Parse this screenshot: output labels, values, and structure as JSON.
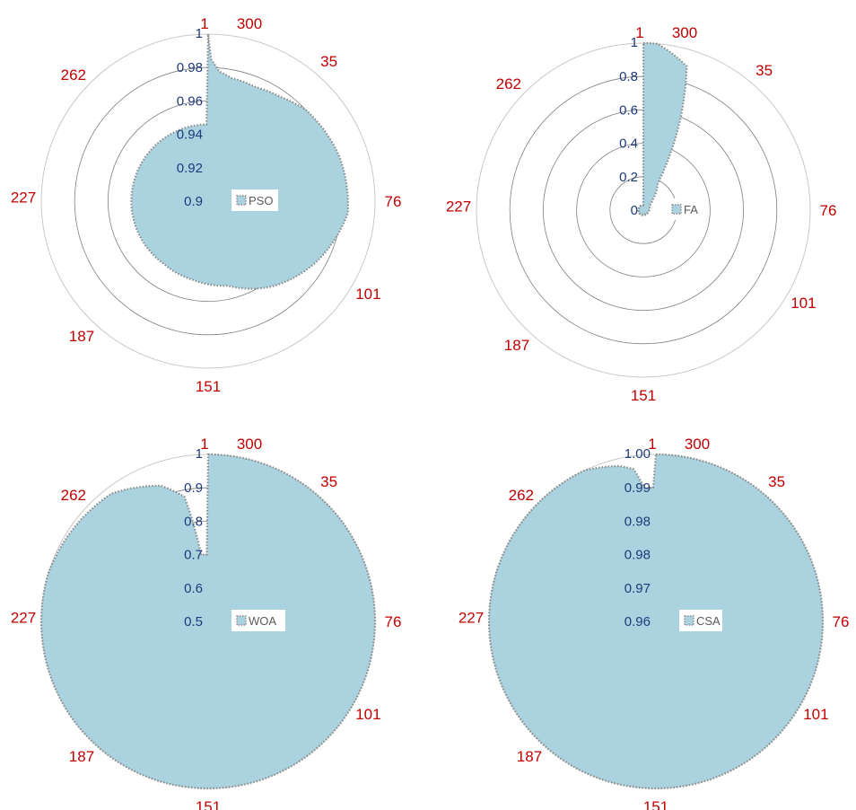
{
  "figure": {
    "accent_color": "#aad3df",
    "outline_color": "#8c8c8c",
    "category_label_color": "#c00000",
    "ring_label_color": "#1f3a7a"
  },
  "chart_data": [
    {
      "type": "radar",
      "legend": "PSO",
      "legend_position": "center-right",
      "category_labels": [
        "1",
        "35",
        "76",
        "101",
        "151",
        "187",
        "227",
        "262",
        "300"
      ],
      "ring_labels": [
        "1",
        "0.98",
        "0.96",
        "0.94",
        "0.92",
        "0.9"
      ],
      "rlim": [
        0.9,
        1.0
      ],
      "grid": true,
      "n_points": 300,
      "breakpoints": {
        "iterations": [
          1,
          2,
          5,
          10,
          20,
          30,
          40,
          60,
          80,
          100,
          120,
          140,
          160,
          180,
          200,
          220,
          240,
          260,
          280,
          300
        ],
        "values": [
          1.0,
          0.985,
          0.978,
          0.975,
          0.974,
          0.976,
          0.98,
          0.983,
          0.984,
          0.9745,
          0.964,
          0.952,
          0.948,
          0.946,
          0.946,
          0.946,
          0.946,
          0.946,
          0.946,
          0.946
        ]
      }
    },
    {
      "type": "radar",
      "legend": "FA",
      "legend_position": "center-right",
      "category_labels": [
        "1",
        "35",
        "76",
        "101",
        "151",
        "187",
        "227",
        "262",
        "300"
      ],
      "ring_labels": [
        "1",
        "0.8",
        "0.6",
        "0.4",
        "0.2",
        "0"
      ],
      "rlim": [
        0,
        1.0
      ],
      "grid": true,
      "n_points": 300,
      "breakpoints": {
        "iterations": [
          1,
          2,
          5,
          15,
          20,
          25,
          35,
          45,
          60,
          100,
          150,
          200,
          250,
          300
        ],
        "values": [
          1.0,
          1.0,
          1.0,
          0.9,
          0.55,
          0.18,
          0.09,
          0.05,
          0.04,
          0.03,
          0.03,
          0.03,
          0.03,
          0.03
        ]
      }
    },
    {
      "type": "radar",
      "legend": "WOA",
      "legend_position": "center-right",
      "category_labels": [
        "1",
        "35",
        "76",
        "101",
        "151",
        "187",
        "227",
        "262",
        "300"
      ],
      "ring_labels": [
        "1",
        "0.9",
        "0.8",
        "0.7",
        "0.6",
        "0.5"
      ],
      "rlim": [
        0.5,
        1.0
      ],
      "grid": true,
      "n_points": 300,
      "breakpoints": {
        "iterations": [
          1,
          2,
          6,
          12,
          20,
          30,
          50,
          80,
          120,
          160,
          200,
          240,
          270,
          285,
          292,
          296,
          300
        ],
        "values": [
          1.0,
          1.0,
          1.0,
          1.0,
          1.0,
          1.0,
          1.0,
          1.0,
          1.0,
          1.0,
          1.0,
          1.0,
          0.98,
          0.93,
          0.88,
          0.7,
          0.7
        ]
      }
    },
    {
      "type": "radar",
      "legend": "CSA",
      "legend_position": "center-right",
      "category_labels": [
        "1",
        "35",
        "76",
        "101",
        "151",
        "187",
        "227",
        "262",
        "300"
      ],
      "ring_labels": [
        "1.00",
        "0.99",
        "0.98",
        "0.98",
        "0.97",
        "0.96"
      ],
      "rlim": [
        0.955,
        1.0
      ],
      "grid": true,
      "n_points": 300,
      "breakpoints": {
        "iterations": [
          1,
          2,
          100,
          200,
          280,
          290,
          294,
          297,
          300
        ],
        "values": [
          1.0,
          1.0,
          1.0,
          1.0,
          1.0,
          0.998,
          0.9965,
          0.991,
          0.991
        ]
      }
    }
  ]
}
